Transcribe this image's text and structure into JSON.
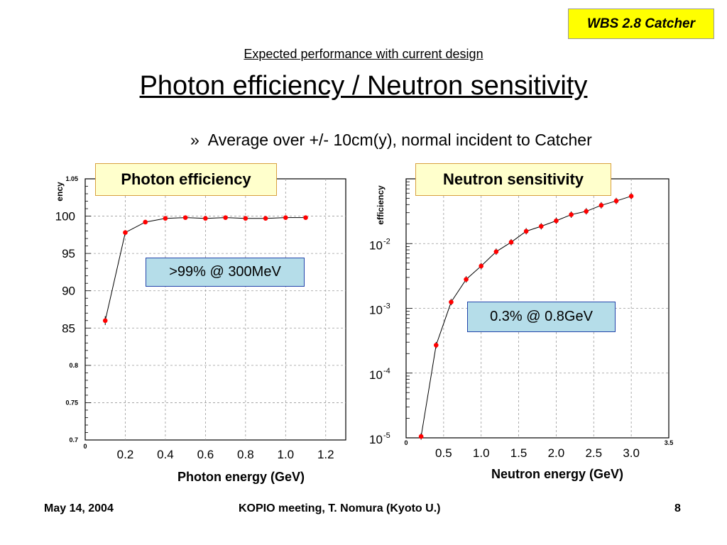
{
  "wbs_label": "WBS 2.8 Catcher",
  "subtitle": "Expected performance with current design",
  "title": "Photon efficiency / Neutron sensitivity",
  "bullet_marker": "»",
  "bullet": "Average over +/- 10cm(y), normal incident to Catcher",
  "footer": {
    "date": "May 14, 2004",
    "meeting": "KOPIO meeting, T. Nomura (Kyoto U.)",
    "page": "8"
  },
  "chart_data": [
    {
      "type": "line",
      "box_label": "Photon efficiency",
      "annotation": ">99% @ 300MeV",
      "xlabel": "Photon energy (GeV)",
      "ylabel_fragment": "ency",
      "xlim": [
        0,
        1.3
      ],
      "ylim": [
        0.7,
        1.05
      ],
      "y_ticks_small": [
        "1.05",
        "0.8",
        "0.75",
        "0.7"
      ],
      "y_ticks_large": [
        {
          "label": "100",
          "value": 1.0
        },
        {
          "label": "95",
          "value": 0.95
        },
        {
          "label": "90",
          "value": 0.9
        },
        {
          "label": "85",
          "value": 0.85
        }
      ],
      "x_tick_origin": "0",
      "x_ticks": [
        "0.2",
        "0.4",
        "0.6",
        "0.8",
        "1.0",
        "1.2"
      ],
      "x": [
        0.1,
        0.2,
        0.3,
        0.4,
        0.5,
        0.6,
        0.7,
        0.8,
        0.9,
        1.0,
        1.1
      ],
      "y": [
        0.86,
        0.978,
        0.992,
        0.997,
        0.998,
        0.997,
        0.998,
        0.997,
        0.997,
        0.998,
        0.998
      ],
      "yerr": [
        0.006,
        0.003,
        0.002,
        0.001,
        0.001,
        0.001,
        0.001,
        0.001,
        0.001,
        0.001,
        0.001
      ],
      "grid": true,
      "marker_color": "#ff0000"
    },
    {
      "type": "line",
      "box_label": "Neutron sensitivity",
      "annotation": "0.3% @ 0.8GeV",
      "xlabel": "Neutron energy (GeV)",
      "ylabel": "efficiency",
      "y_scale": "log",
      "xlim": [
        0,
        3.5
      ],
      "ylim": [
        1e-05,
        0.1
      ],
      "y_ticks": [
        {
          "base": "10",
          "exp": "-2",
          "value": 0.01
        },
        {
          "base": "10",
          "exp": "-3",
          "value": 0.001
        },
        {
          "base": "10",
          "exp": "-4",
          "value": 0.0001
        },
        {
          "base": "10",
          "exp": "-5",
          "value": 1e-05
        }
      ],
      "x_tick_origin": "0",
      "x_tick_end": "3.5",
      "x_ticks": [
        "0.5",
        "1.0",
        "1.5",
        "2.0",
        "2.5",
        "3.0"
      ],
      "x": [
        0.2,
        0.4,
        0.6,
        0.8,
        1.0,
        1.2,
        1.4,
        1.6,
        1.8,
        2.0,
        2.2,
        2.4,
        2.6,
        2.8,
        3.0
      ],
      "y": [
        1.05e-05,
        0.00027,
        0.00125,
        0.0028,
        0.0045,
        0.0075,
        0.0105,
        0.0155,
        0.0185,
        0.0225,
        0.028,
        0.0315,
        0.039,
        0.0455,
        0.054
      ],
      "grid": true,
      "marker_color": "#ff0000"
    }
  ]
}
